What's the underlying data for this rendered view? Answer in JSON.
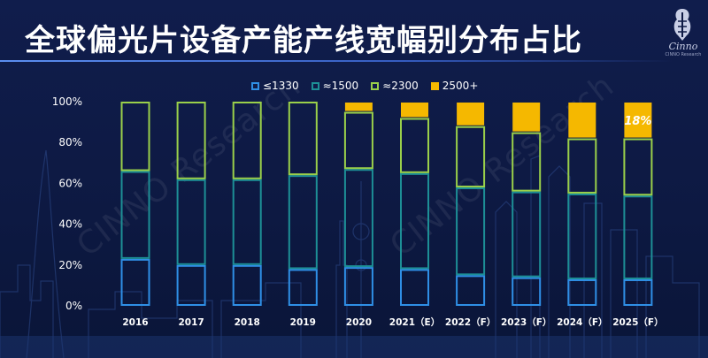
{
  "title": "全球偏光片设备产能产线宽幅别分布占比",
  "logo": {
    "name": "Cinno",
    "tagline": "CINNO Research"
  },
  "watermark": "CINNO Research",
  "chart_data": {
    "type": "bar",
    "stacked": true,
    "title": "全球偏光片设备产能产线宽幅别分布占比",
    "xlabel": "",
    "ylabel": "",
    "ylim": [
      0,
      100
    ],
    "yticks": [
      "0%",
      "20%",
      "40%",
      "60%",
      "80%",
      "100%"
    ],
    "legend_position": "top-center",
    "categories": [
      "2016",
      "2017",
      "2018",
      "2019",
      "2020",
      "2021（E）",
      "2022（F）",
      "2023（F）",
      "2024（F）",
      "2025（F）"
    ],
    "series": [
      {
        "name": "≤1330",
        "color": "#2f8fe6",
        "values": [
          23,
          20,
          20,
          18,
          19,
          18,
          15,
          14,
          13,
          13
        ]
      },
      {
        "name": "≈1500",
        "color": "#1d8f96",
        "values": [
          43,
          42,
          42,
          46,
          48,
          47,
          43,
          42,
          42,
          41
        ]
      },
      {
        "name": "≈2300",
        "color": "#9ad04a",
        "values": [
          34,
          38,
          38,
          36,
          28,
          27,
          30,
          29,
          27,
          28
        ]
      },
      {
        "name": "2500+",
        "color": "#f5b800",
        "values": [
          0,
          0,
          0,
          0,
          5,
          8,
          12,
          15,
          18,
          18
        ]
      }
    ],
    "annotations": [
      {
        "category": "2025（F）",
        "series": "2500+",
        "text": "18%"
      }
    ]
  }
}
